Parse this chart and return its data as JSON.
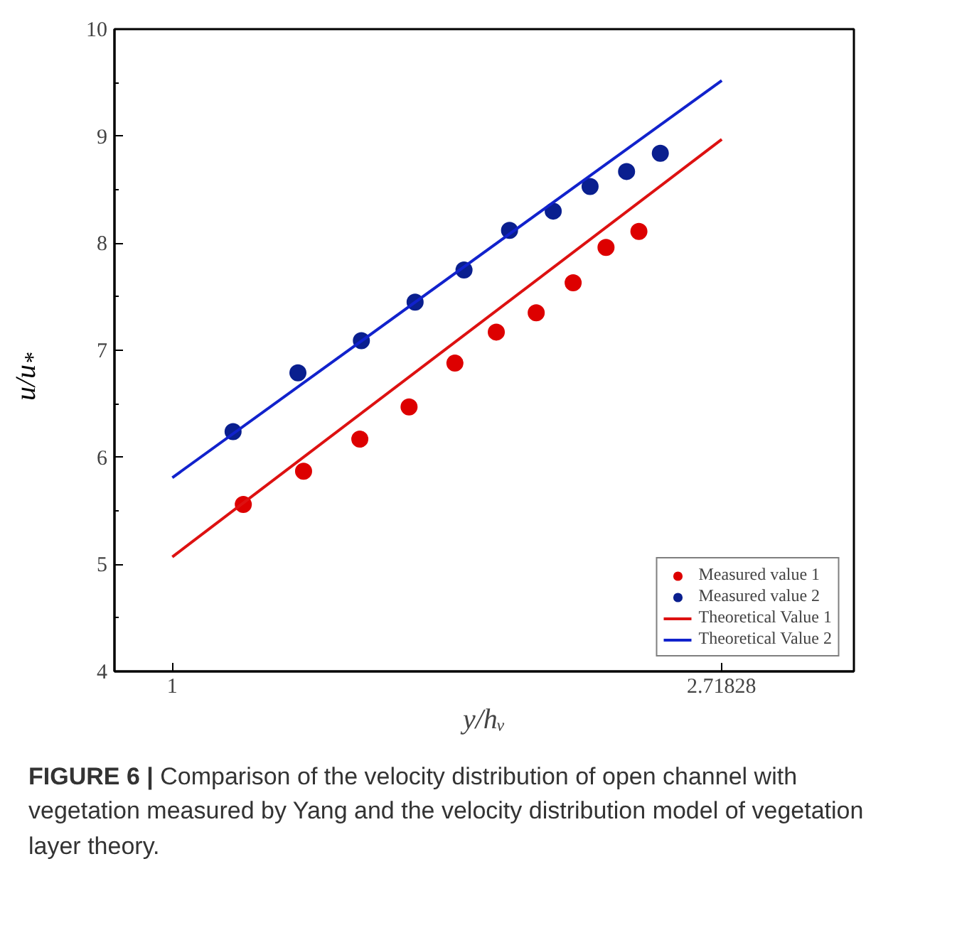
{
  "chart_data": {
    "type": "scatter",
    "xlabel": "y/hᵥ",
    "ylabel": "u/u$_{*}$",
    "log": "x",
    "xlim": [
      0.9,
      3.46
    ],
    "ylim": [
      4,
      10
    ],
    "xticks": [
      1,
      {
        "value": 2.71828,
        "label": "2.71828"
      }
    ],
    "yticks": [
      4,
      5,
      6,
      7,
      8,
      9,
      10
    ],
    "grid": false,
    "legend": "bottom right",
    "series": [
      {
        "name": "Measured value 1",
        "color": "#dd0000",
        "marker": "circle",
        "x": [
          1.138,
          1.27,
          1.407,
          1.539,
          1.673,
          1.804,
          1.94,
          2.075,
          2.203,
          2.339
        ],
        "values": [
          5.56,
          5.87,
          6.17,
          6.47,
          6.88,
          7.17,
          7.35,
          7.63,
          7.96,
          8.11
        ]
      },
      {
        "name": "Measured value 2",
        "color": "#0a1f8f",
        "marker": "circle",
        "x": [
          1.117,
          1.257,
          1.411,
          1.556,
          1.701,
          1.848,
          2.001,
          2.14,
          2.287,
          2.432
        ],
        "values": [
          6.24,
          6.79,
          7.09,
          7.45,
          7.75,
          8.12,
          8.3,
          8.53,
          8.67,
          8.84
        ]
      },
      {
        "name": "Theoretical Value 1",
        "color": "#dd1111",
        "type": "line",
        "marker": "none",
        "x": [
          1,
          2.72
        ],
        "values": [
          5.07,
          8.97
        ]
      },
      {
        "name": "Theoretical Value 2",
        "color": "#1122cc",
        "type": "line",
        "marker": "none",
        "x": [
          1,
          2.72
        ],
        "values": [
          5.81,
          9.52
        ]
      }
    ],
    "annotations": [
      "FIGURE 6 | Comparison of the velocity distribution of open channel with vegetation measured by Yang and the velocity distribution model of vegetation layer theory."
    ]
  }
}
